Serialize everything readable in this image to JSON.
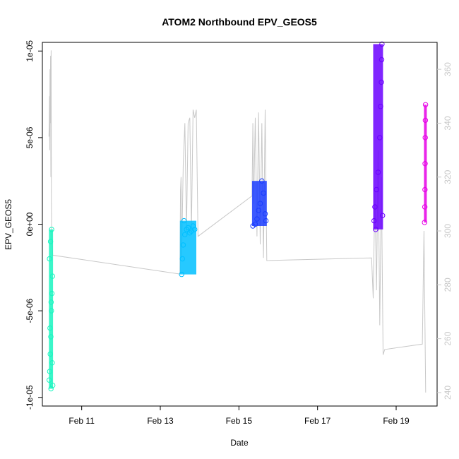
{
  "chart_data": {
    "type": "scatter",
    "title": "ATOM2 Northbound EPV_GEOS5",
    "xlabel": "Date",
    "ylabel": "EPV_GEOS5",
    "x_ticks": [
      {
        "value": "2016-02-11",
        "label": "Feb 11"
      },
      {
        "value": "2016-02-13",
        "label": "Feb 13"
      },
      {
        "value": "2016-02-15",
        "label": "Feb 15"
      },
      {
        "value": "2016-02-17",
        "label": "Feb 17"
      },
      {
        "value": "2016-02-19",
        "label": "Feb 19"
      }
    ],
    "xlim": [
      "2016-02-10T00:00",
      "2016-02-20T01:00"
    ],
    "ylim": [
      -1.05e-05,
      1.05e-05
    ],
    "y_ticks": [
      {
        "value": -1e-05,
        "label": "-1e-05"
      },
      {
        "value": -5e-06,
        "label": "-5e-06"
      },
      {
        "value": 0,
        "label": "0e+00"
      },
      {
        "value": 5e-06,
        "label": "5e-06"
      },
      {
        "value": 1e-05,
        "label": "1e-05"
      }
    ],
    "y2lim": [
      235,
      370
    ],
    "y2_ticks": [
      {
        "value": 240,
        "label": "240"
      },
      {
        "value": 260,
        "label": "260"
      },
      {
        "value": 280,
        "label": "280"
      },
      {
        "value": 300,
        "label": "300"
      },
      {
        "value": 320,
        "label": "320"
      },
      {
        "value": 340,
        "label": "340"
      },
      {
        "value": 360,
        "label": "360"
      }
    ],
    "series": [
      {
        "color": "#19f5c0",
        "x_range": [
          "2016-02-10T04:00",
          "2016-02-10T06:30"
        ],
        "points": [
          [
            "2016-02-10T04:10",
            -9e-06
          ],
          [
            "2016-02-10T04:30",
            -8.5e-06
          ],
          [
            "2016-02-10T04:50",
            -7.5e-06
          ],
          [
            "2016-02-10T05:10",
            -6.5e-06
          ],
          [
            "2016-02-10T05:30",
            -5e-06
          ],
          [
            "2016-02-10T05:50",
            -4e-06
          ],
          [
            "2016-02-10T06:10",
            -3e-06
          ],
          [
            "2016-02-10T04:20",
            -2e-06
          ],
          [
            "2016-02-10T05:00",
            -1e-06
          ],
          [
            "2016-02-10T05:40",
            -3e-07
          ],
          [
            "2016-02-10T06:20",
            -9.3e-06
          ],
          [
            "2016-02-10T04:40",
            -6e-06
          ],
          [
            "2016-02-10T05:20",
            -4.5e-06
          ],
          [
            "2016-02-10T06:00",
            -8e-06
          ],
          [
            "2016-02-10T05:15",
            -9.5e-06
          ]
        ]
      },
      {
        "color": "#00bfff",
        "x_range": [
          "2016-02-13T12:00",
          "2016-02-13T22:00"
        ],
        "points": [
          [
            "2016-02-13T13:00",
            -2.9e-06
          ],
          [
            "2016-02-13T13:30",
            -2e-06
          ],
          [
            "2016-02-13T14:00",
            -1.2e-06
          ],
          [
            "2016-02-13T15:00",
            -6e-07
          ],
          [
            "2016-02-13T16:00",
            -3e-07
          ],
          [
            "2016-02-13T17:00",
            -2e-07
          ],
          [
            "2016-02-13T18:00",
            -5e-07
          ],
          [
            "2016-02-13T19:00",
            -4e-07
          ],
          [
            "2016-02-13T20:00",
            -1e-07
          ],
          [
            "2016-02-13T21:00",
            -3e-07
          ],
          [
            "2016-02-13T14:30",
            2e-07
          ]
        ]
      },
      {
        "color": "#1a3cff",
        "x_range": [
          "2016-02-15T08:00",
          "2016-02-15T17:00"
        ],
        "points": [
          [
            "2016-02-15T08:30",
            -1e-07
          ],
          [
            "2016-02-15T10:00",
            0.0
          ],
          [
            "2016-02-15T11:00",
            3e-07
          ],
          [
            "2016-02-15T12:00",
            8e-07
          ],
          [
            "2016-02-15T13:00",
            1.2e-06
          ],
          [
            "2016-02-15T14:00",
            2.5e-06
          ],
          [
            "2016-02-15T15:00",
            1.8e-06
          ],
          [
            "2016-02-15T16:00",
            6e-07
          ],
          [
            "2016-02-15T16:30",
            2e-07
          ]
        ]
      },
      {
        "color": "#6a00ff",
        "x_range": [
          "2016-02-18T10:00",
          "2016-02-18T16:00"
        ],
        "points": [
          [
            "2016-02-18T10:30",
            2e-07
          ],
          [
            "2016-02-18T11:00",
            1e-06
          ],
          [
            "2016-02-18T12:00",
            2e-06
          ],
          [
            "2016-02-18T13:00",
            3e-06
          ],
          [
            "2016-02-18T14:00",
            5e-06
          ],
          [
            "2016-02-18T14:30",
            6.8e-06
          ],
          [
            "2016-02-18T15:00",
            8.2e-06
          ],
          [
            "2016-02-18T15:10",
            9.5e-06
          ],
          [
            "2016-02-18T15:20",
            1.04e-05
          ],
          [
            "2016-02-18T15:40",
            5e-07
          ],
          [
            "2016-02-18T11:30",
            -3e-07
          ]
        ]
      },
      {
        "color": "#e600e6",
        "x_range": [
          "2016-02-19T17:00",
          "2016-02-19T18:00"
        ],
        "points": [
          [
            "2016-02-19T17:20",
            1e-07
          ],
          [
            "2016-02-19T17:30",
            1e-06
          ],
          [
            "2016-02-19T17:35",
            2e-06
          ],
          [
            "2016-02-19T17:40",
            3.5e-06
          ],
          [
            "2016-02-19T17:45",
            5e-06
          ],
          [
            "2016-02-19T17:50",
            6e-06
          ],
          [
            "2016-02-19T17:55",
            6.9e-06
          ]
        ]
      }
    ],
    "line_series": {
      "axis": "right",
      "color": "#c8c8c8",
      "points": [
        [
          "2016-02-10T04:00",
          335
        ],
        [
          "2016-02-10T04:10",
          340
        ],
        [
          "2016-02-10T04:20",
          350
        ],
        [
          "2016-02-10T04:30",
          330
        ],
        [
          "2016-02-10T04:40",
          360
        ],
        [
          "2016-02-10T04:50",
          340
        ],
        [
          "2016-02-10T05:00",
          365
        ],
        [
          "2016-02-10T05:10",
          320
        ],
        [
          "2016-02-10T05:20",
          367
        ],
        [
          "2016-02-10T05:30",
          310
        ],
        [
          "2016-02-10T05:40",
          300
        ],
        [
          "2016-02-10T06:20",
          291
        ],
        [
          "2016-02-13T12:00",
          284
        ],
        [
          "2016-02-13T12:20",
          315
        ],
        [
          "2016-02-13T12:40",
          320
        ],
        [
          "2016-02-13T13:00",
          290
        ],
        [
          "2016-02-13T14:00",
          325
        ],
        [
          "2016-02-13T15:00",
          340
        ],
        [
          "2016-02-13T16:00",
          300
        ],
        [
          "2016-02-13T17:00",
          340
        ],
        [
          "2016-02-13T18:00",
          342
        ],
        [
          "2016-02-13T19:00",
          300
        ],
        [
          "2016-02-13T20:00",
          345
        ],
        [
          "2016-02-13T21:00",
          342
        ],
        [
          "2016-02-13T22:00",
          345
        ],
        [
          "2016-02-13T23:00",
          298
        ],
        [
          "2016-02-15T08:00",
          313
        ],
        [
          "2016-02-15T08:30",
          340
        ],
        [
          "2016-02-15T09:00",
          310
        ],
        [
          "2016-02-15T10:00",
          342
        ],
        [
          "2016-02-15T11:00",
          298
        ],
        [
          "2016-02-15T12:00",
          344
        ],
        [
          "2016-02-15T13:00",
          295
        ],
        [
          "2016-02-15T14:00",
          340
        ],
        [
          "2016-02-15T15:00",
          290
        ],
        [
          "2016-02-15T16:00",
          345
        ],
        [
          "2016-02-15T17:00",
          289
        ],
        [
          "2016-02-18T09:00",
          290
        ],
        [
          "2016-02-18T10:00",
          275
        ],
        [
          "2016-02-18T11:00",
          315
        ],
        [
          "2016-02-18T12:00",
          278
        ],
        [
          "2016-02-18T13:00",
          330
        ],
        [
          "2016-02-18T14:00",
          265
        ],
        [
          "2016-02-18T15:00",
          320
        ],
        [
          "2016-02-18T16:00",
          254
        ],
        [
          "2016-02-18T17:00",
          256
        ],
        [
          "2016-02-19T16:00",
          258
        ],
        [
          "2016-02-19T17:00",
          300
        ],
        [
          "2016-02-19T18:00",
          240
        ]
      ]
    },
    "grid": false,
    "legend": "none"
  }
}
